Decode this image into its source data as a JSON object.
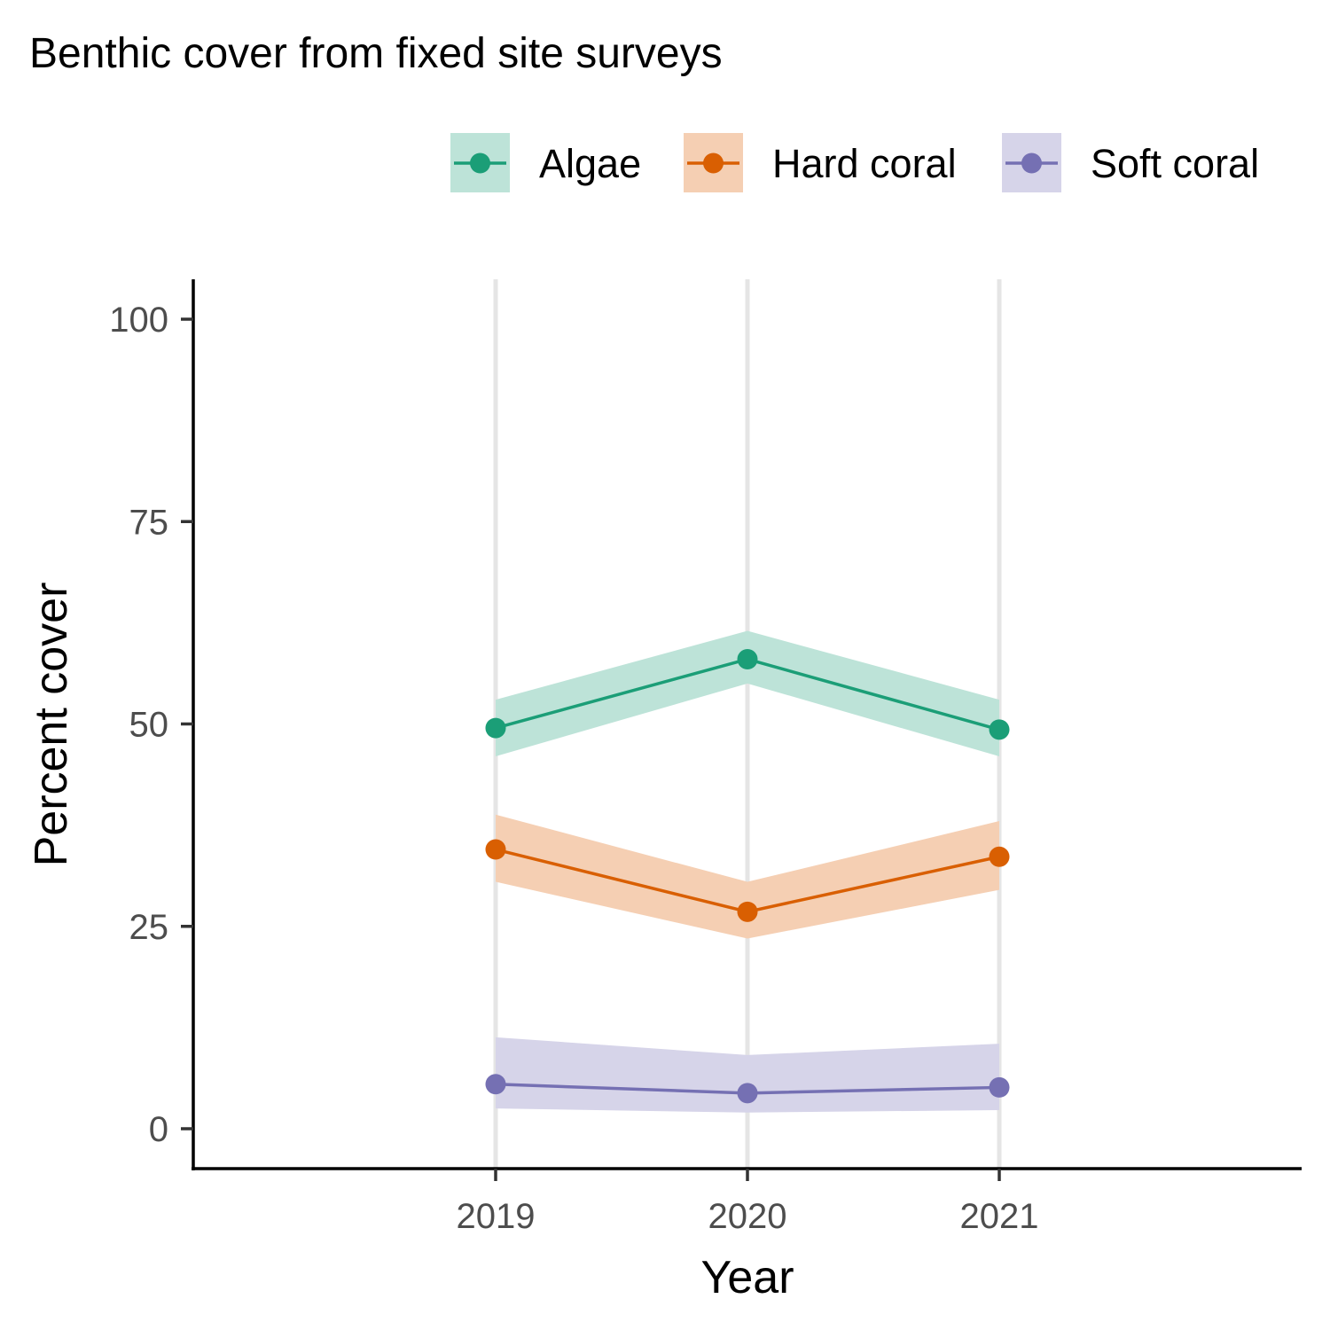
{
  "chart_data": {
    "type": "line",
    "title": "Benthic cover from fixed site surveys",
    "xlabel": "Year",
    "ylabel": "Percent cover",
    "x": [
      "2019",
      "2020",
      "2021"
    ],
    "yticks": [
      "0",
      "25",
      "50",
      "75",
      "100"
    ],
    "ylim": [
      0,
      100
    ],
    "grid": "vertical major gridlines",
    "legend_position": "top-right",
    "series": [
      {
        "name": "Algae",
        "color": "#1B9E77",
        "band_color": "#BDE3D8",
        "values": [
          49.5,
          58,
          49.3
        ],
        "lower": [
          46,
          55,
          46
        ],
        "upper": [
          53,
          61.5,
          53
        ]
      },
      {
        "name": "Hard coral",
        "color": "#D95F02",
        "band_color": "#F5CFB3",
        "values": [
          34.5,
          26.8,
          33.6
        ],
        "lower": [
          30.5,
          23.5,
          29.5
        ],
        "upper": [
          38.8,
          30.5,
          38
        ]
      },
      {
        "name": "Soft coral",
        "color": "#7570B3",
        "band_color": "#D6D4E9",
        "values": [
          5.5,
          4.4,
          5.1
        ],
        "lower": [
          2.5,
          2,
          2.3
        ],
        "upper": [
          11.3,
          9.1,
          10.5
        ]
      }
    ]
  }
}
